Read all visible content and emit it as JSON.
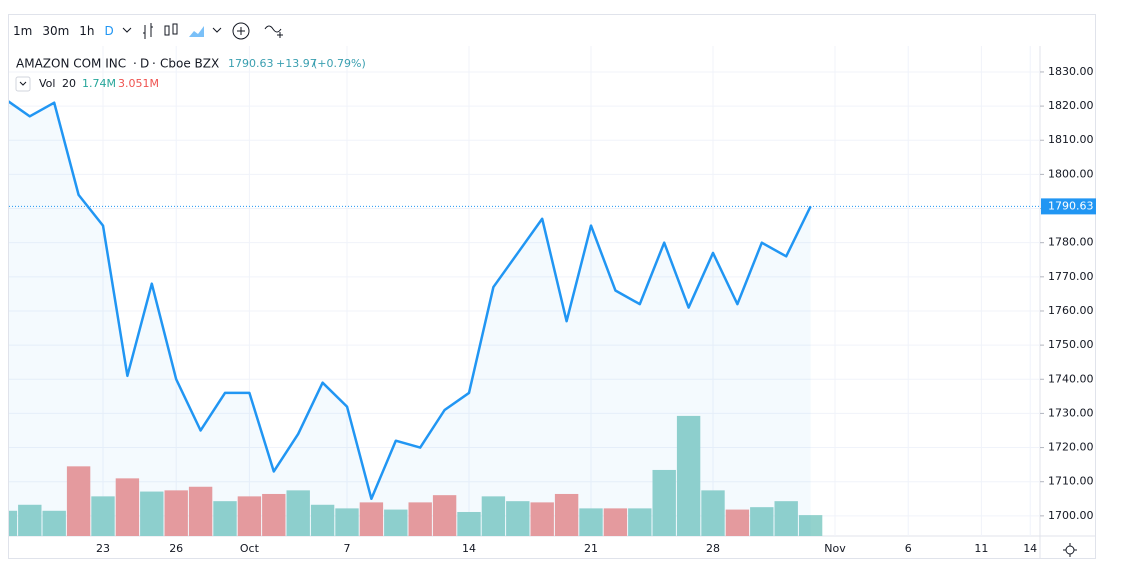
{
  "toolbar": {
    "intervals": [
      "1m",
      "30m",
      "1h",
      "D"
    ]
  },
  "header": {
    "symbol": "AMAZON COM INC",
    "interval": "D",
    "exchange": "Cboe BZX",
    "close": "1790.63",
    "change": "+13.97",
    "change_pct": "(+0.79%)",
    "vol_label": "Vol",
    "vol_length": "20",
    "vol_value": "1.74M",
    "vol_ma": "3.051M"
  },
  "chart_data": {
    "type": "line",
    "categories": [
      null,
      null,
      null,
      null,
      "23",
      null,
      null,
      "26",
      null,
      null,
      "Oct",
      null,
      null,
      null,
      "7",
      null,
      null,
      null,
      null,
      "14",
      null,
      null,
      null,
      null,
      "21",
      null,
      null,
      null,
      null,
      "28",
      null,
      null,
      null,
      null,
      "Nov",
      null,
      null,
      "6",
      null,
      null,
      "11",
      null,
      "14"
    ],
    "series": [
      {
        "name": "AMAZON COM INC",
        "color": "#2196f3",
        "values": [
          1822,
          1817,
          1821,
          1794,
          1785,
          1741,
          1768,
          1740,
          1725,
          1736,
          1736,
          1713,
          1724,
          1739,
          1732,
          1705,
          1722,
          1720,
          1731,
          1736,
          1767,
          1777,
          1787,
          1757,
          1785,
          1766,
          1762,
          1780,
          1761,
          1777,
          1762,
          1780,
          1776,
          1790.63,
          null,
          null,
          null,
          null,
          null,
          null,
          null,
          null,
          null
        ]
      },
      {
        "name": "Vol",
        "axis": "y2",
        "values": [
          2.1,
          2.6,
          2.1,
          5.8,
          3.3,
          4.8,
          3.7,
          3.8,
          4.1,
          2.9,
          3.3,
          3.5,
          3.8,
          2.6,
          2.3,
          2.8,
          2.2,
          2.8,
          3.4,
          2.0,
          3.3,
          2.9,
          2.8,
          3.5,
          2.3,
          2.3,
          2.3,
          5.5,
          10.0,
          3.8,
          2.2,
          2.4,
          2.9,
          1.74,
          null,
          null,
          null,
          null,
          null,
          null,
          null,
          null,
          null
        ],
        "colors": [
          "#93d2cc",
          "#93d2cc",
          "#93d2cc",
          "#ef9a9a",
          "#93d2cc",
          "#ef9a9a",
          "#93d2cc",
          "#ef9a9a",
          "#ef9a9a",
          "#93d2cc",
          "#ef9a9a",
          "#ef9a9a",
          "#93d2cc",
          "#93d2cc",
          "#93d2cc",
          "#ef9a9a",
          "#93d2cc",
          "#ef9a9a",
          "#ef9a9a",
          "#93d2cc",
          "#93d2cc",
          "#93d2cc",
          "#ef9a9a",
          "#ef9a9a",
          "#93d2cc",
          "#ef9a9a",
          "#93d2cc",
          "#93d2cc",
          "#93d2cc",
          "#93d2cc",
          "#ef9a9a",
          "#93d2cc",
          "#93d2cc",
          "#93d2cc",
          null,
          null,
          null,
          null,
          null,
          null,
          null,
          null,
          null
        ]
      }
    ],
    "ylim": [
      1694.1,
      1837.6
    ],
    "yticks": [
      {
        "value": 1700,
        "label": "1700.00"
      },
      {
        "value": 1710,
        "label": "1710.00"
      },
      {
        "value": 1720,
        "label": "1720.00"
      },
      {
        "value": 1730,
        "label": "1730.00"
      },
      {
        "value": 1740,
        "label": "1740.00"
      },
      {
        "value": 1750,
        "label": "1750.00"
      },
      {
        "value": 1760,
        "label": "1760.00"
      },
      {
        "value": 1770,
        "label": "1770.00"
      },
      {
        "value": 1780,
        "label": "1780.00"
      },
      {
        "value": 1790,
        "label": "1790.00"
      },
      {
        "value": 1800,
        "label": "1800.00"
      },
      {
        "value": 1810,
        "label": "1810.00"
      },
      {
        "value": 1820,
        "label": "1820.00"
      },
      {
        "value": 1830,
        "label": "1830.00"
      }
    ],
    "y2lim": [
      0,
      40.8
    ],
    "grid": true
  }
}
